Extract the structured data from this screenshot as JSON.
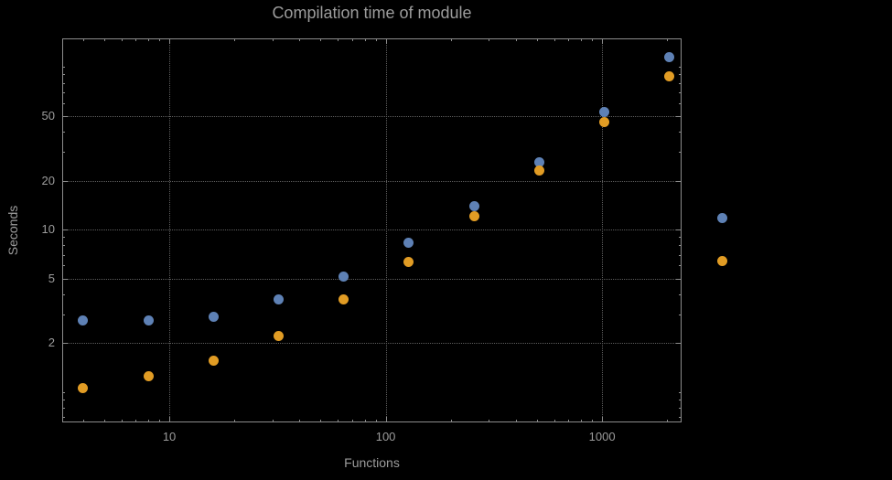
{
  "title": "Compilation time of module",
  "colors": {
    "background": "#000000",
    "frame": "#8c8c8c",
    "grid": "#5e5e5e",
    "text": "#9c9c9c",
    "series_blue": "#5e81b5",
    "series_orange": "#e19c24"
  },
  "chart_data": {
    "type": "scatter",
    "title": "Compilation time of module",
    "xlabel": "Functions",
    "ylabel": "Seconds",
    "x_scale": "log",
    "y_scale": "log",
    "grid": "dotted",
    "xlim": [
      3.2,
      2330
    ],
    "ylim": [
      0.65,
      150
    ],
    "x_ticks": [
      10,
      100,
      1000
    ],
    "y_ticks": [
      2,
      5,
      10,
      20,
      50
    ],
    "x": [
      4,
      8,
      16,
      32,
      64,
      128,
      256,
      512,
      1024,
      2048
    ],
    "series": [
      {
        "name": "blue",
        "color": "#5e81b5",
        "values": [
          2.75,
          2.75,
          2.9,
          3.7,
          5.1,
          8.3,
          14,
          26,
          53,
          115
        ]
      },
      {
        "name": "orange",
        "color": "#e19c24",
        "values": [
          1.05,
          1.25,
          1.55,
          2.2,
          3.7,
          6.3,
          12,
          23,
          46,
          88
        ]
      }
    ],
    "legend": {
      "position": "right",
      "entries": [
        {
          "series": "blue",
          "label": ""
        },
        {
          "series": "orange",
          "label": ""
        }
      ]
    }
  }
}
